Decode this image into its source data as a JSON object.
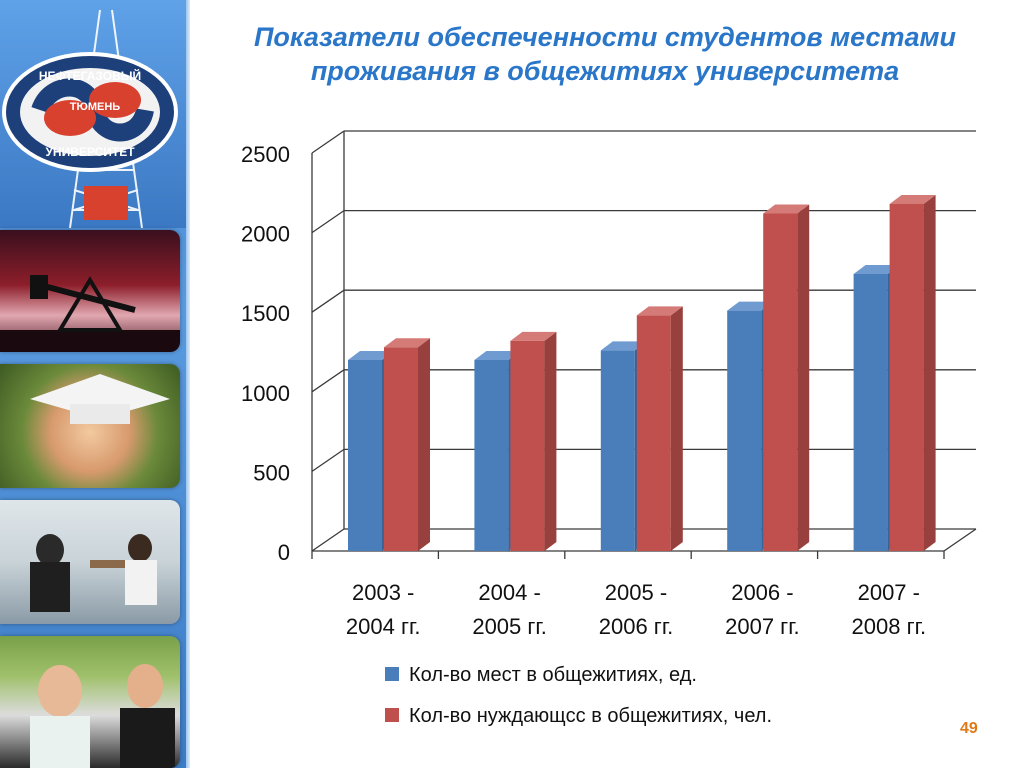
{
  "title": "Показатели обеспеченности студентов местами проживания в общежитиях университета",
  "page_number": "49",
  "logo": {
    "top_text": "НЕФТЕГАЗОВЫЙ",
    "middle_text": "ТЮМЕНЬ",
    "bottom_text": "УНИВЕРСИТЕТ"
  },
  "colors": {
    "series1": "#4a7ebb",
    "series2": "#c0504d",
    "title": "#2a76c8",
    "page_number": "#e07a18"
  },
  "chart_data": {
    "type": "bar",
    "title": "",
    "xlabel": "",
    "ylabel": "",
    "ylim": [
      0,
      2500
    ],
    "yticks": [
      0,
      500,
      1000,
      1500,
      2000,
      2500
    ],
    "grid": true,
    "legend_position": "bottom",
    "categories": [
      [
        "2003 -",
        "2004 гг."
      ],
      [
        "2004 -",
        "2005 гг."
      ],
      [
        "2005 -",
        "2006 гг."
      ],
      [
        "2006 -",
        "2007 гг."
      ],
      [
        "2007 -",
        "2008 гг."
      ]
    ],
    "series": [
      {
        "name": "Кол-во мест в общежитиях, ед.",
        "values": [
          1200,
          1200,
          1260,
          1510,
          1740
        ]
      },
      {
        "name": "Кол-во нуждающсс в общежитиях, чел.",
        "values": [
          1280,
          1320,
          1480,
          2120,
          2180
        ]
      }
    ]
  }
}
